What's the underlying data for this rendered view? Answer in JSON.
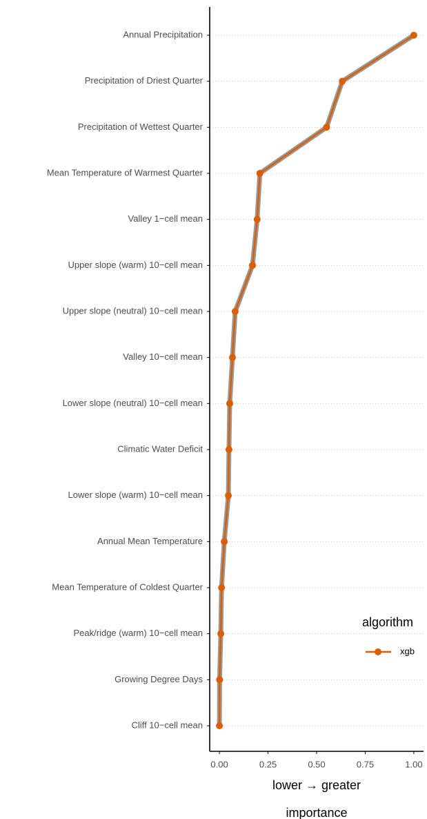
{
  "chart_data": {
    "type": "line",
    "orientation": "horizontal",
    "categories": [
      "Annual Precipitation",
      "Precipitation of Driest Quarter",
      "Precipitation of Wettest Quarter",
      "Mean Temperature of Warmest Quarter",
      "Valley 1−cell mean",
      "Upper slope (warm) 10−cell mean",
      "Upper slope (neutral) 10−cell mean",
      "Valley 10−cell mean",
      "Lower slope (neutral) 10−cell mean",
      "Climatic Water Deficit",
      "Lower slope (warm) 10−cell mean",
      "Annual Mean Temperature",
      "Mean Temperature of Coldest Quarter",
      "Peak/ridge (warm) 10−cell mean",
      "Growing Degree Days",
      "Cliff 10−cell mean"
    ],
    "series": [
      {
        "name": "xgb",
        "color": "#d95f02",
        "values": [
          1.0,
          0.632,
          0.551,
          0.208,
          0.194,
          0.17,
          0.081,
          0.067,
          0.053,
          0.049,
          0.046,
          0.025,
          0.011,
          0.007,
          0.001,
          0.0
        ]
      }
    ],
    "xlim": [
      -0.05,
      1.05
    ],
    "xticks": [
      {
        "value": 0,
        "label": "0.00"
      },
      0.25,
      {
        "value": 0.5,
        "label": "0.50"
      },
      0.75,
      {
        "value": 1,
        "label": "1.00"
      }
    ],
    "xlabel": [
      "lower → greater",
      "importance"
    ],
    "legend_title": "algorithm",
    "grid": true
  }
}
